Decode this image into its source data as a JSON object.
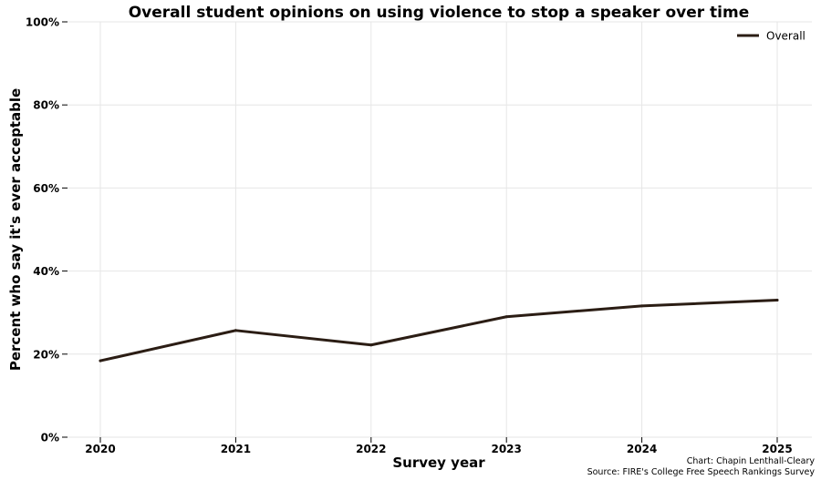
{
  "chart_data": {
    "type": "line",
    "title": "Overall student opinions on using violence to stop a speaker over time",
    "xlabel": "Survey year",
    "ylabel": "Percent who say it's ever acceptable",
    "x": [
      "2020",
      "2021",
      "2022",
      "2023",
      "2024",
      "2025"
    ],
    "series": [
      {
        "name": "Overall",
        "color": "#2b1d14",
        "values": [
          18.4,
          25.7,
          22.2,
          29.0,
          31.6,
          33.0
        ]
      }
    ],
    "ylim": [
      0,
      100
    ],
    "yticks": [
      0,
      20,
      40,
      60,
      80,
      100
    ],
    "ytick_labels": [
      "0%",
      "20%",
      "40%",
      "60%",
      "80%",
      "100%"
    ],
    "grid": true,
    "legend_position": "top-right",
    "credits": {
      "chart": "Chart: Chapin Lenthall-Cleary",
      "source": "Source: FIRE's College Free Speech Rankings Survey"
    }
  }
}
